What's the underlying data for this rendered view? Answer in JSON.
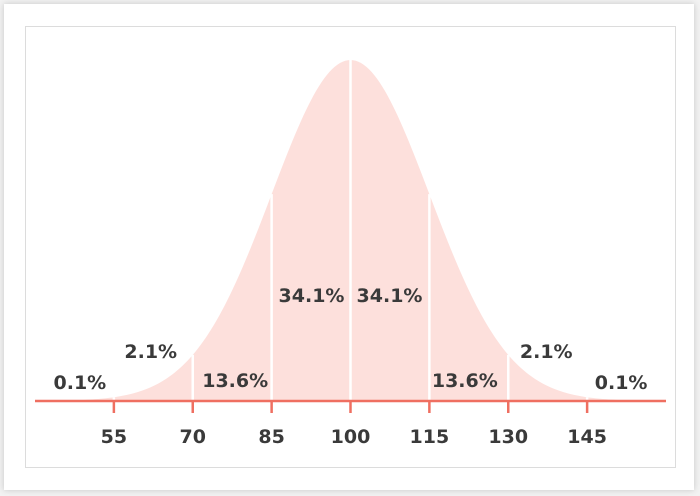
{
  "chart_data": {
    "type": "area",
    "title": "",
    "xlabel": "",
    "ylabel": "",
    "distribution": {
      "mean": 100,
      "sd": 15
    },
    "xlim": [
      40,
      160
    ],
    "ticks": [
      55,
      70,
      85,
      100,
      115,
      130,
      145
    ],
    "tick_labels": [
      "55",
      "70",
      "85",
      "100",
      "115",
      "130",
      "145"
    ],
    "divisions": [
      55,
      70,
      85,
      100,
      115,
      130,
      145
    ],
    "regions": [
      {
        "from": 40,
        "to": 55,
        "label": "0.1%"
      },
      {
        "from": 55,
        "to": 70,
        "label": "2.1%"
      },
      {
        "from": 70,
        "to": 85,
        "label": "13.6%"
      },
      {
        "from": 85,
        "to": 100,
        "label": "34.1%"
      },
      {
        "from": 100,
        "to": 115,
        "label": "34.1%"
      },
      {
        "from": 115,
        "to": 130,
        "label": "13.6%"
      },
      {
        "from": 130,
        "to": 145,
        "label": "2.1%"
      },
      {
        "from": 145,
        "to": 160,
        "label": "0.1%"
      }
    ],
    "grid": false,
    "legend": "none",
    "colors": {
      "fill": "#fde0dc",
      "axis": "#ef6f61",
      "divider": "#ffffff",
      "text": "#3a3a3a"
    }
  }
}
